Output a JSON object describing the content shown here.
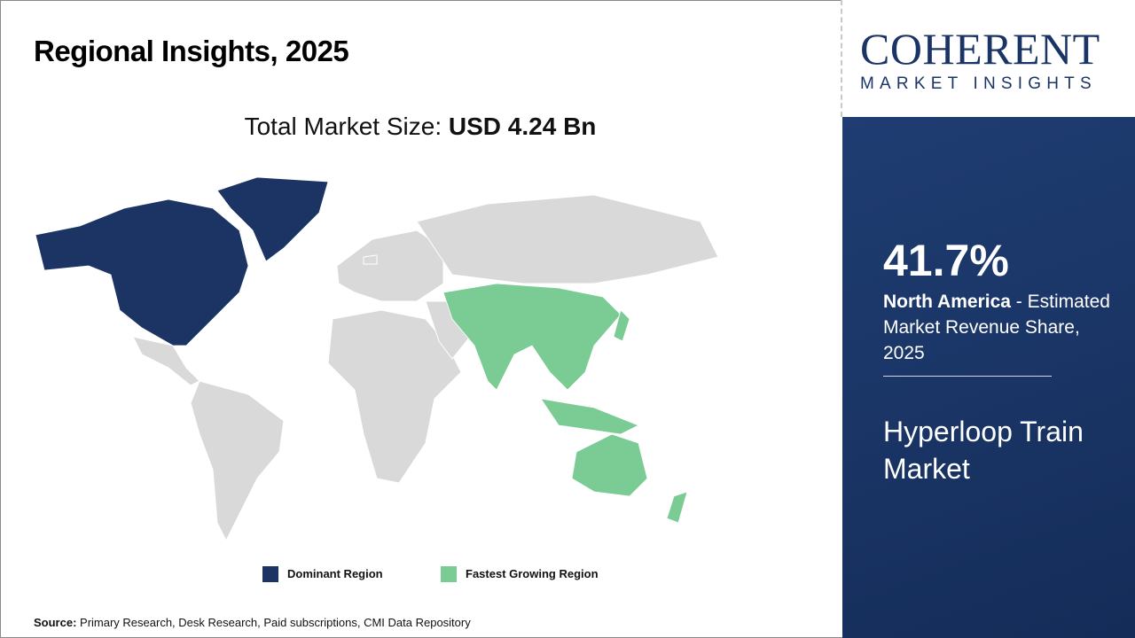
{
  "title": "Regional Insights, 2025",
  "total_market": {
    "label": "Total Market Size: ",
    "value": "USD 4.24 Bn"
  },
  "logo": {
    "top": "COHERENT",
    "bottom": "MARKET INSIGHTS"
  },
  "panel": {
    "share": "41.7%",
    "region": "North America",
    "desc": " - Estimated Market Revenue Share, 2025",
    "market": "Hyperloop Train Market"
  },
  "legend": [
    {
      "label": "Dominant Region",
      "color": "#1b3464"
    },
    {
      "label": "Fastest Growing Region",
      "color": "#7bcb94"
    }
  ],
  "source": {
    "label": "Source:",
    "text": " Primary Research, Desk Research, Paid subscriptions, CMI Data Repository"
  },
  "colors": {
    "other": "#d9d9d9",
    "panel": "#1a3566"
  }
}
